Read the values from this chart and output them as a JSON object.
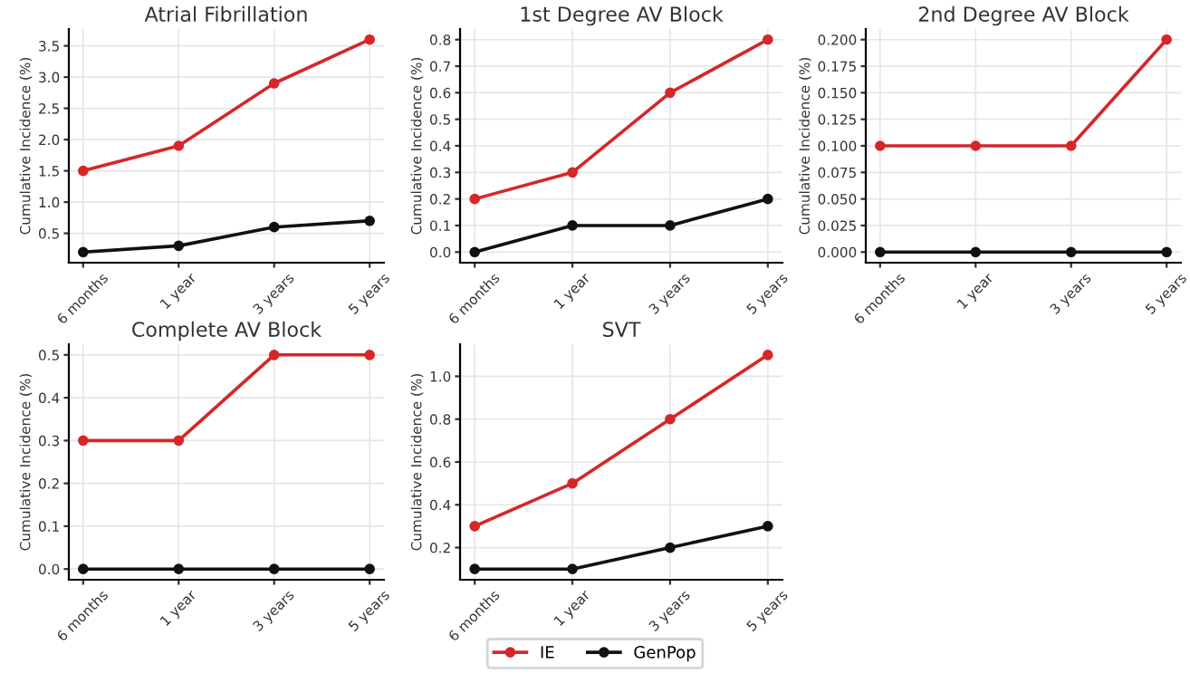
{
  "chart_data": [
    {
      "type": "line",
      "title": "Atrial Fibrillation",
      "ylabel": "Cumulative Incidence (%)",
      "categories": [
        "6 months",
        "1 year",
        "3 years",
        "5 years"
      ],
      "ylim": [
        0.03,
        3.77
      ],
      "yticks": [
        0.5,
        {
          "value": 1,
          "label": "1.0"
        },
        1.5,
        {
          "value": 2,
          "label": "2.0"
        },
        2.5,
        {
          "value": 3,
          "label": "3.0"
        },
        3.5
      ],
      "grid": true,
      "marker": "circle",
      "legend": "bottom",
      "series": [
        {
          "name": "IE",
          "color": "#d62728",
          "values": [
            1.5,
            1.9,
            2.9,
            3.6
          ]
        },
        {
          "name": "GenPop",
          "color": "#111111",
          "values": [
            0.2,
            0.3,
            0.6,
            0.7
          ]
        }
      ]
    },
    {
      "type": "line",
      "title": "1st Degree AV Block",
      "ylabel": "Cumulative Incidence (%)",
      "categories": [
        "6 months",
        "1 year",
        "3 years",
        "5 years"
      ],
      "ylim": [
        -0.04,
        0.84
      ],
      "yticks": [
        {
          "value": 0,
          "label": "0.0"
        },
        0.1,
        0.2,
        0.3,
        0.4,
        0.5,
        0.6,
        0.7,
        0.8
      ],
      "grid": true,
      "marker": "circle",
      "series": [
        {
          "color": "#d62728",
          "values": [
            0.2,
            0.3,
            0.6,
            0.8
          ]
        },
        {
          "color": "#111111",
          "values": [
            0.0,
            0.1,
            0.1,
            0.2
          ]
        }
      ]
    },
    {
      "type": "line",
      "title": "2nd Degree AV Block",
      "ylabel": "Cumulative Incidence (%)",
      "categories": [
        "6 months",
        "1 year",
        "3 years",
        "5 years"
      ],
      "ylim": [
        -0.01,
        0.21
      ],
      "yticks": [
        {
          "value": 0.0,
          "label": "0.000"
        },
        {
          "value": 0.025,
          "label": "0.025"
        },
        {
          "value": 0.05,
          "label": "0.050"
        },
        {
          "value": 0.075,
          "label": "0.075"
        },
        {
          "value": 0.1,
          "label": "0.100"
        },
        {
          "value": 0.125,
          "label": "0.125"
        },
        {
          "value": 0.15,
          "label": "0.150"
        },
        {
          "value": 0.175,
          "label": "0.175"
        },
        {
          "value": 0.2,
          "label": "0.200"
        }
      ],
      "grid": true,
      "marker": "circle",
      "series": [
        {
          "color": "#d62728",
          "values": [
            0.1,
            0.1,
            0.1,
            0.2
          ]
        },
        {
          "color": "#111111",
          "values": [
            0.0,
            0.0,
            0.0,
            0.0
          ]
        }
      ]
    },
    {
      "type": "line",
      "title": "Complete AV Block",
      "ylabel": "Cumulative Incidence (%)",
      "categories": [
        "6 months",
        "1 year",
        "3 years",
        "5 years"
      ],
      "ylim": [
        -0.025,
        0.525
      ],
      "yticks": [
        {
          "value": 0,
          "label": "0.0"
        },
        0.1,
        0.2,
        0.3,
        0.4,
        0.5
      ],
      "grid": true,
      "marker": "circle",
      "series": [
        {
          "color": "#d62728",
          "values": [
            0.3,
            0.3,
            0.5,
            0.5
          ]
        },
        {
          "color": "#111111",
          "values": [
            0.0,
            0.0,
            0.0,
            0.0
          ]
        }
      ]
    },
    {
      "type": "line",
      "title": "SVT",
      "ylabel": "Cumulative Incidence (%)",
      "categories": [
        "6 months",
        "1 year",
        "3 years",
        "5 years"
      ],
      "ylim": [
        0.05,
        1.15
      ],
      "yticks": [
        0.2,
        0.4,
        0.6,
        0.8,
        {
          "value": 1,
          "label": "1.0"
        }
      ],
      "grid": true,
      "marker": "circle",
      "series": [
        {
          "color": "#d62728",
          "values": [
            0.3,
            0.5,
            0.8,
            1.1
          ]
        },
        {
          "color": "#111111",
          "values": [
            0.1,
            0.1,
            0.2,
            0.3
          ]
        }
      ]
    }
  ]
}
